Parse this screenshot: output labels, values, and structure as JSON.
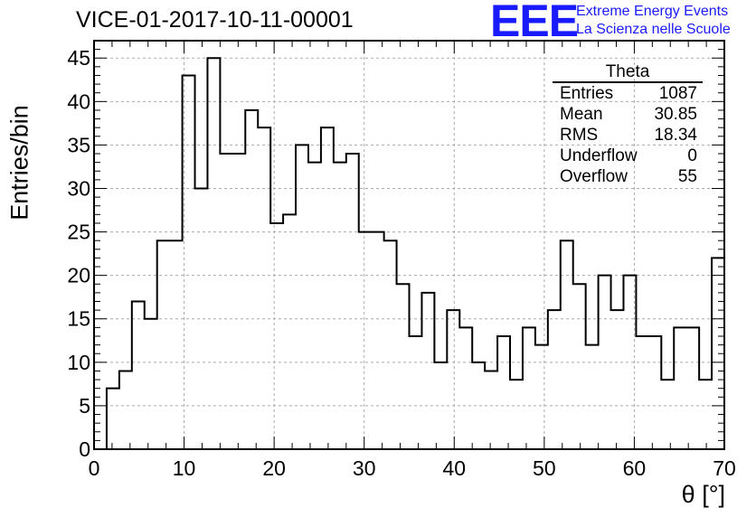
{
  "title": "VICE-01-2017-10-11-00001",
  "logo": {
    "mark": "EEE",
    "line1": "Extreme Energy Events",
    "line2": "La Scienza nelle Scuole"
  },
  "stats": {
    "name": "Theta",
    "rows": [
      {
        "label": "Entries",
        "value": "1087"
      },
      {
        "label": "Mean",
        "value": "30.85"
      },
      {
        "label": "RMS",
        "value": "18.34"
      },
      {
        "label": "Underflow",
        "value": "0"
      },
      {
        "label": "Overflow",
        "value": "55"
      }
    ]
  },
  "chart_data": {
    "type": "bar",
    "histogram": true,
    "xlabel": "θ [°]",
    "ylabel": "Entries/bin",
    "xlim": [
      0,
      70
    ],
    "ylim": [
      0,
      47
    ],
    "xticks": [
      0,
      10,
      20,
      30,
      40,
      50,
      60,
      70
    ],
    "yticks": [
      0,
      5,
      10,
      15,
      20,
      25,
      30,
      35,
      40,
      45
    ],
    "grid": true,
    "bin_edges": [
      1.4,
      2.8,
      4.2,
      5.6,
      7.0,
      8.4,
      9.8,
      11.2,
      12.6,
      14.0,
      15.4,
      16.8,
      18.2,
      19.6,
      21.0,
      22.4,
      23.8,
      25.2,
      26.6,
      28.0,
      29.4,
      30.8,
      32.2,
      33.6,
      35.0,
      36.4,
      37.8,
      39.2,
      40.6,
      42.0,
      43.4,
      44.8,
      46.2,
      47.6,
      49.0,
      50.4,
      51.8,
      53.2,
      54.6,
      56.0,
      57.4,
      58.8,
      60.2,
      61.6,
      63.0,
      64.4,
      65.8,
      67.2,
      68.6,
      70.0
    ],
    "values": [
      7,
      9,
      17,
      15,
      24,
      24,
      43,
      30,
      45,
      34,
      34,
      39,
      37,
      26,
      27,
      35,
      33,
      37,
      33,
      34,
      25,
      25,
      24,
      19,
      13,
      18,
      10,
      16,
      14,
      10,
      9,
      13,
      8,
      14,
      12,
      16,
      24,
      19,
      12,
      20,
      16,
      20,
      13,
      13,
      8,
      14,
      14,
      8,
      22
    ]
  }
}
